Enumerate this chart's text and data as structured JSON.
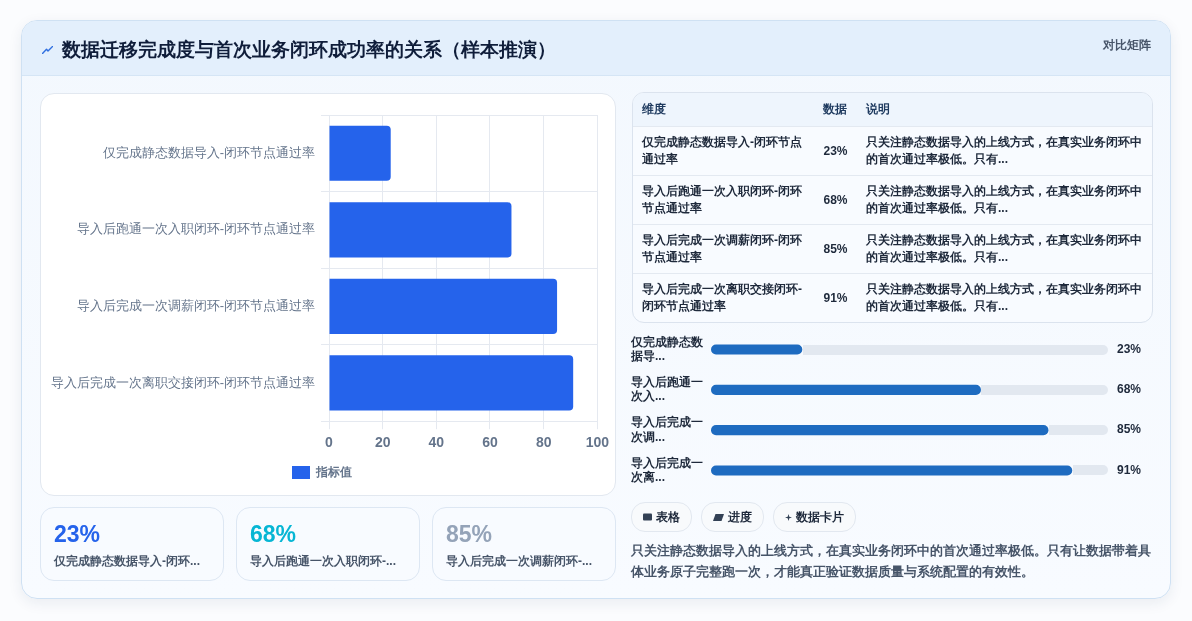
{
  "chart_data": [
    {
      "type": "bar",
      "title": "数据迁移完成度与首次业务闭环成功率的关系（样本推演）",
      "categories": [
        "仅完成静态数据导入-闭环节点通过率",
        "导入后跑通一次入职闭环-闭环节点通过率",
        "导入后完成一次调薪闭环-闭环节点通过率",
        "导入后完成一次离职交接闭环-闭环节点通过率"
      ],
      "series": [
        {
          "name": "指标值",
          "color": "#2563eb",
          "values": [
            23,
            68,
            85,
            91
          ]
        }
      ],
      "orientation": "horizontal",
      "xlim": [
        0,
        100
      ],
      "xticks": [
        0,
        20,
        40,
        60,
        80,
        100
      ],
      "grid": true,
      "legend": "bottom"
    },
    {
      "type": "bar",
      "orientation": "horizontal",
      "categories": [
        "仅完成静态数据导...",
        "导入后跑通一次入...",
        "导入后完成一次调...",
        "导入后完成一次离..."
      ],
      "values": [
        23,
        68,
        85,
        91
      ],
      "value_labels": [
        "23%",
        "68%",
        "85%",
        "91%"
      ],
      "color": "#1e6bc0",
      "tick_labels": "y"
    },
    {
      "type": "other",
      "title": "对比矩阵",
      "annotations": [
        "维度",
        "数据",
        "说明",
        "仅完成静态数据导入-闭环节点通过率",
        "23%",
        "只关注静态数据导入的上线方式，在真实业务闭环中的首次通过率极低。只有...",
        "导入后跑通一次入职闭环-闭环节点通过率",
        "68%",
        "只关注静态数据导入的上线方式，在真实业务闭环中的首次通过率极低。只有...",
        "导入后完成一次调薪闭环-闭环节点通过率",
        "85%",
        "只关注静态数据导入的上线方式，在真实业务闭环中的首次通过率极低。只有...",
        "导入后完成一次离职交接闭环-闭环节点通过率",
        "91%",
        "只关注静态数据导入的上线方式，在真实业务闭环中的首次通过率极低。只有..."
      ]
    },
    {
      "type": "other",
      "annotations": [
        "23%",
        "仅完成静态数据导入-闭环...",
        "68%",
        "导入后跑通一次入职闭环-...",
        "85%",
        "导入后完成一次调薪闭环-..."
      ]
    },
    {
      "type": "other",
      "annotations": [
        "表格",
        "进度",
        "数据卡片",
        "只关注静态数据导入的上线方式，在真实业务闭环中的首次通过率极低。只有让数据带着具体业务原子完整跑一次，才能真正验证数据质量与系统配置的有效性。"
      ]
    }
  ]
}
